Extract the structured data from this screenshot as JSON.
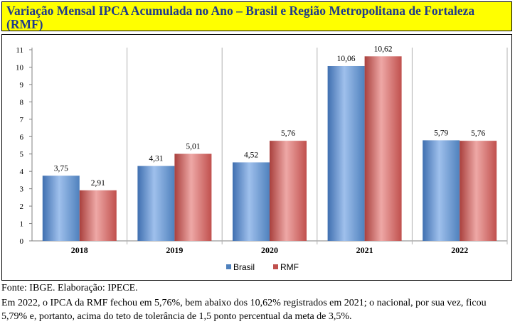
{
  "title": "Variação Mensal IPCA Acumulada no Ano – Brasil e Região Metropolitana de Fortaleza (RMF)",
  "source": "Fonte: IBGE. Elaboração: IPECE.",
  "note": "Em 2022, o IPCA da RMF fechou em 5,76%, bem abaixo dos 10,62% registrados em 2021; o nacional, por sua vez, ficou 5,79% e, portanto, acima do teto de tolerância de 1,5 ponto percentual da meta de 3,5%.",
  "colors": {
    "brasil": "#4f81bd",
    "rmf": "#c0504d",
    "title_bg": "#ffff00",
    "title_text": "#1f3b8a"
  },
  "chart_data": {
    "type": "bar",
    "categories": [
      "2018",
      "2019",
      "2020",
      "2021",
      "2022"
    ],
    "series": [
      {
        "name": "Brasil",
        "values": [
          3.75,
          4.31,
          4.52,
          10.06,
          5.79
        ],
        "labels": [
          "3,75",
          "4,31",
          "4,52",
          "10,06",
          "5,79"
        ]
      },
      {
        "name": "RMF",
        "values": [
          2.91,
          5.01,
          5.76,
          10.62,
          5.76
        ],
        "labels": [
          "2,91",
          "5,01",
          "5,76",
          "10,62",
          "5,76"
        ]
      }
    ],
    "ylim": [
      0,
      11
    ],
    "yticks": [
      "0",
      "1",
      "2",
      "3",
      "4",
      "5",
      "6",
      "7",
      "8",
      "9",
      "10",
      "11"
    ],
    "grid": "vertical category separators",
    "legend": "bottom-center"
  }
}
